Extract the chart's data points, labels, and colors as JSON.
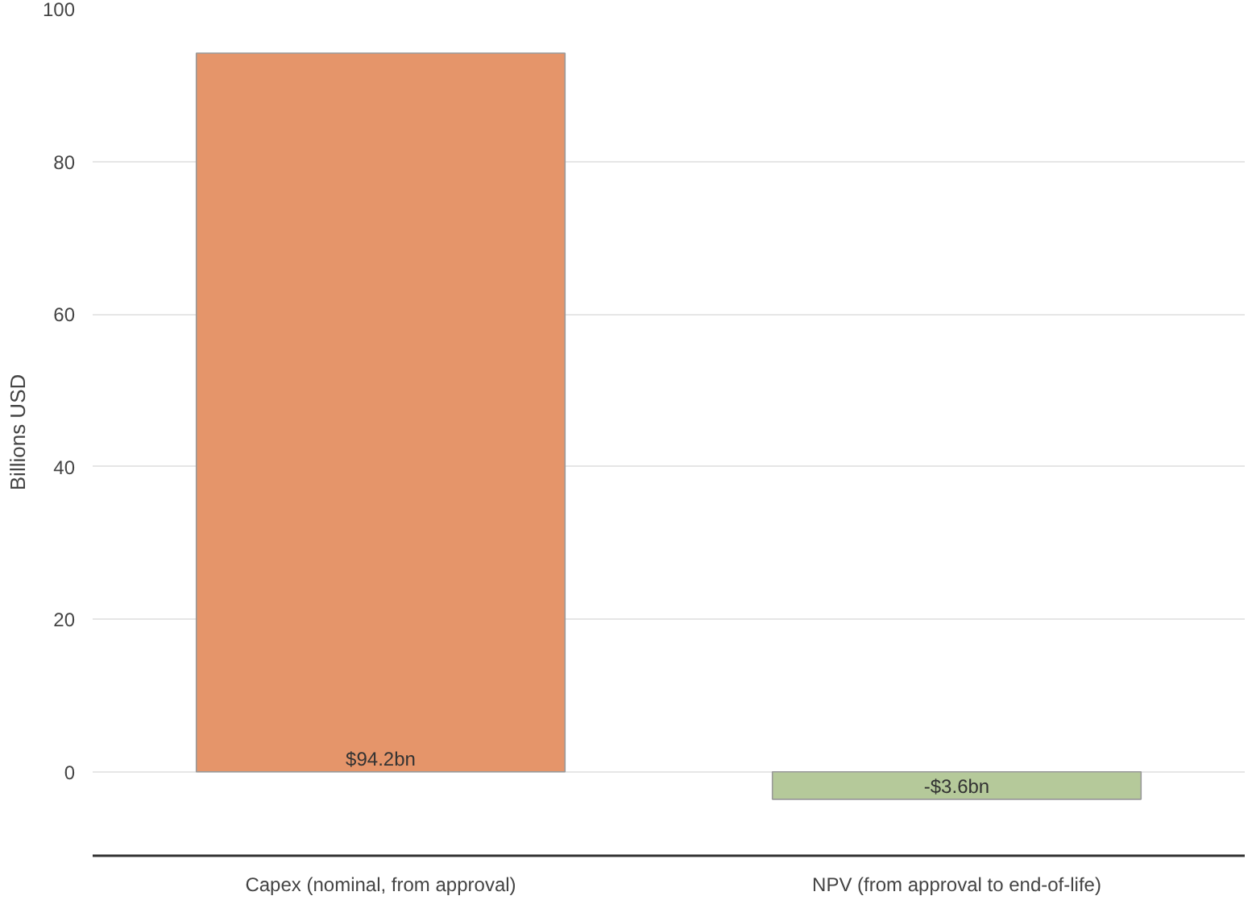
{
  "chart_data": {
    "type": "bar",
    "ylabel": "Billions USD",
    "categories": [
      "Capex (nominal, from approval)",
      "NPV (from approval to end-of-life)"
    ],
    "values": [
      94.2,
      -3.6
    ],
    "colors": [
      "#e5956a",
      "#b5c99a"
    ],
    "value_labels": [
      "$94.2bn",
      "-$3.6bn"
    ],
    "ylim": [
      -11,
      100
    ],
    "yticks": [
      0,
      20,
      40,
      60,
      80,
      100
    ],
    "grid": "y"
  }
}
